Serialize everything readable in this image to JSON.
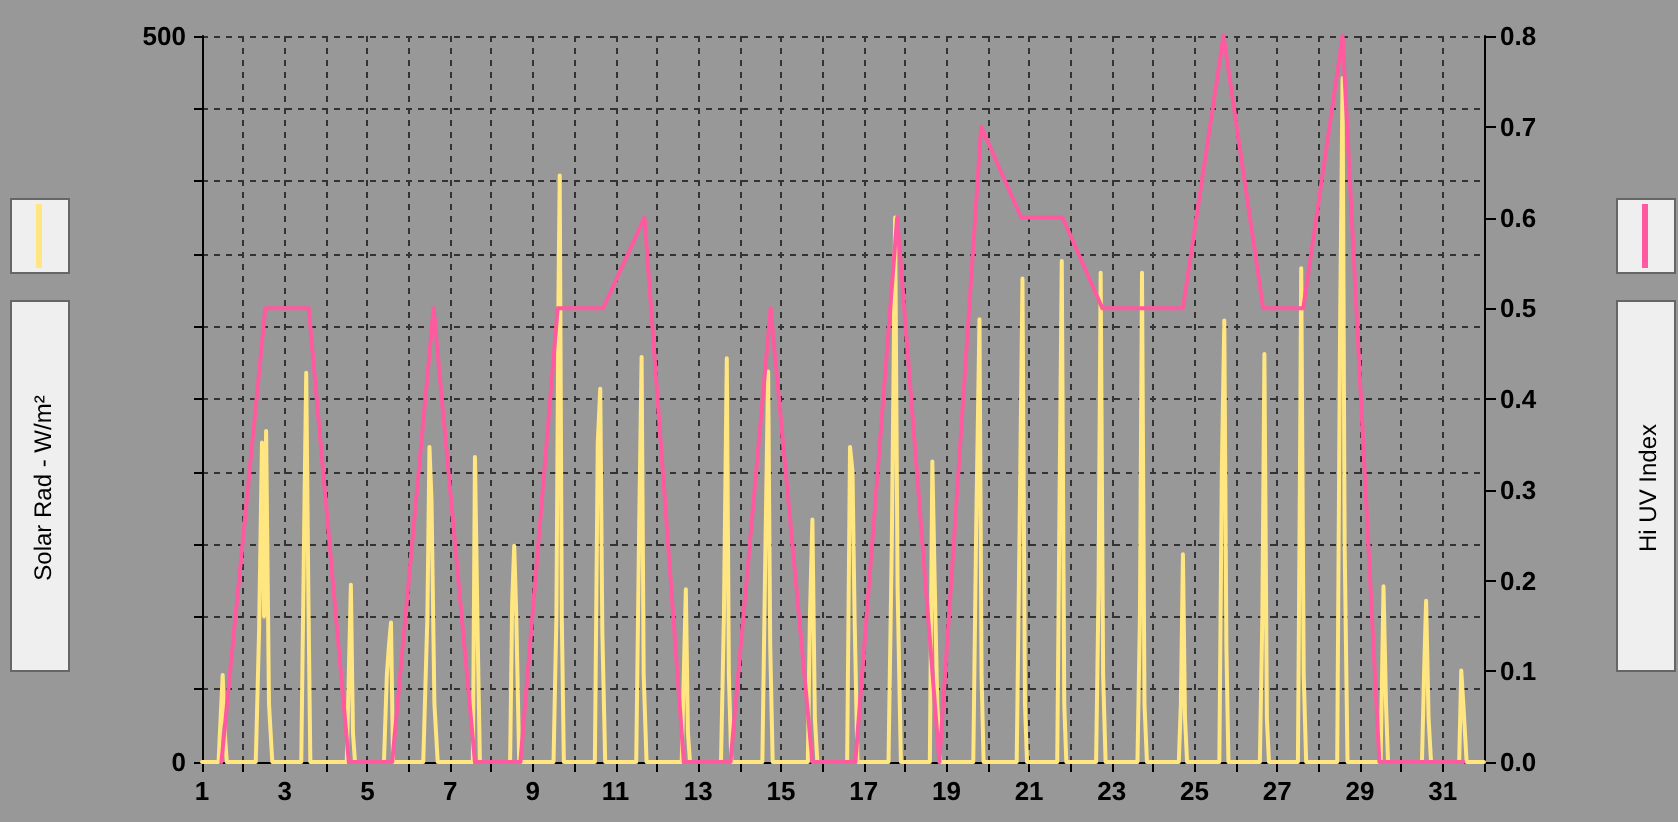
{
  "chart_data": {
    "type": "line",
    "ylabel": "Solar Rad - W/m²",
    "y2label": "Hi UV Index",
    "xlim": [
      1,
      32
    ],
    "xticks": [
      1,
      {
        "value": 2,
        "label": null
      },
      3,
      {
        "value": 4,
        "label": null
      },
      5,
      {
        "value": 6,
        "label": null
      },
      7,
      {
        "value": 8,
        "label": null
      },
      9,
      {
        "value": 10,
        "label": null
      },
      11,
      {
        "value": 12,
        "label": null
      },
      13,
      {
        "value": 14,
        "label": null
      },
      15,
      {
        "value": 16,
        "label": null
      },
      17,
      {
        "value": 18,
        "label": null
      },
      19,
      {
        "value": 20,
        "label": null
      },
      21,
      {
        "value": 22,
        "label": null
      },
      23,
      {
        "value": 24,
        "label": null
      },
      25,
      {
        "value": 26,
        "label": null
      },
      27,
      {
        "value": 28,
        "label": null
      },
      29,
      {
        "value": 30,
        "label": null
      },
      31,
      {
        "value": 32,
        "label": null
      }
    ],
    "ylim": [
      0,
      500
    ],
    "yticks": [
      0,
      {
        "value": 50,
        "label": null
      },
      {
        "value": 100,
        "label": null
      },
      {
        "value": 150,
        "label": null
      },
      {
        "value": 200,
        "label": null
      },
      {
        "value": 250,
        "label": null
      },
      {
        "value": 300,
        "label": null
      },
      {
        "value": 350,
        "label": null
      },
      {
        "value": 400,
        "label": null
      },
      {
        "value": 450,
        "label": null
      },
      500
    ],
    "y2lim": [
      0,
      0.8
    ],
    "y2ticks": [
      {
        "value": 0,
        "label": "0.0"
      },
      0.1,
      0.2,
      0.3,
      0.4,
      0.5,
      0.6,
      0.7,
      0.8
    ],
    "grid": true,
    "line_style": "solid",
    "marker": "none",
    "series": [
      {
        "color": "#ffe680",
        "x": [
          1,
          1.4,
          1.45,
          1.5,
          1.55,
          1.6,
          2.3,
          2.38,
          2.45,
          2.5,
          2.55,
          2.62,
          2.7,
          3.4,
          3.47,
          3.52,
          3.57,
          3.62,
          4.5,
          4.55,
          4.6,
          4.65,
          4.7,
          5.4,
          5.47,
          5.52,
          5.57,
          5.62,
          6.35,
          6.45,
          6.5,
          6.55,
          6.62,
          6.7,
          7.55,
          7.6,
          7.67,
          7.72,
          8.45,
          8.5,
          8.55,
          8.6,
          8.67,
          9.5,
          9.57,
          9.62,
          9.65,
          9.7,
          9.75,
          10.5,
          10.57,
          10.63,
          10.68,
          10.75,
          11.5,
          11.57,
          11.63,
          11.68,
          11.75,
          12.6,
          12.65,
          12.7,
          12.75,
          12.8,
          13.55,
          13.62,
          13.69,
          13.74,
          13.8,
          14.55,
          14.62,
          14.69,
          14.74,
          14.8,
          15.65,
          15.7,
          15.76,
          15.82,
          15.88,
          16.6,
          16.67,
          16.73,
          16.78,
          16.85,
          17.6,
          17.68,
          17.76,
          17.82,
          17.9,
          18.6,
          18.66,
          18.72,
          18.78,
          18.85,
          19.65,
          19.72,
          19.8,
          19.85,
          19.9,
          20.7,
          20.77,
          20.84,
          20.9,
          20.95,
          21.68,
          21.73,
          21.79,
          21.85,
          21.9,
          22.62,
          22.68,
          22.73,
          22.79,
          22.85,
          23.62,
          23.68,
          23.73,
          23.79,
          23.85,
          24.62,
          24.67,
          24.72,
          24.77,
          24.82,
          25.6,
          25.66,
          25.72,
          25.77,
          25.82,
          26.58,
          26.64,
          26.69,
          26.75,
          26.8,
          27.5,
          27.55,
          27.58,
          27.64,
          27.7,
          28.45,
          28.52,
          28.58,
          28.63,
          28.7,
          29.5,
          29.57,
          29.63,
          29.68,
          30.5,
          30.55,
          30.6,
          30.66,
          30.72,
          31.4,
          31.45,
          31.5,
          31.58,
          32
        ],
        "values": [
          0,
          0,
          30,
          60,
          20,
          0,
          0,
          90,
          220,
          100,
          228,
          40,
          0,
          0,
          160,
          268,
          120,
          0,
          0,
          60,
          122,
          20,
          0,
          0,
          60,
          80,
          96,
          0,
          0,
          100,
          217,
          180,
          40,
          0,
          0,
          210,
          80,
          0,
          0,
          110,
          149,
          100,
          0,
          0,
          100,
          322,
          404,
          100,
          0,
          0,
          220,
          257,
          90,
          0,
          0,
          160,
          279,
          60,
          0,
          0,
          60,
          119,
          20,
          0,
          0,
          100,
          278,
          60,
          0,
          0,
          140,
          269,
          80,
          0,
          0,
          100,
          167,
          30,
          0,
          0,
          217,
          200,
          100,
          0,
          0,
          150,
          375,
          120,
          0,
          0,
          207,
          120,
          40,
          0,
          0,
          160,
          305,
          60,
          0,
          0,
          160,
          333,
          40,
          0,
          0,
          160,
          345,
          40,
          0,
          0,
          120,
          337,
          60,
          0,
          0,
          100,
          337,
          40,
          0,
          0,
          40,
          143,
          30,
          0,
          0,
          200,
          304,
          80,
          0,
          0,
          100,
          281,
          30,
          0,
          0,
          200,
          340,
          60,
          0,
          0,
          300,
          471,
          150,
          0,
          0,
          121,
          40,
          0,
          0,
          60,
          111,
          30,
          0,
          0,
          63,
          40,
          0,
          0
        ]
      },
      {
        "color": "#ff5aa0",
        "axis": "y2",
        "x": [
          1.47,
          2.53,
          3.58,
          4.55,
          5.6,
          6.6,
          7.6,
          8.7,
          9.6,
          10.7,
          11.7,
          12.65,
          13.78,
          14.75,
          15.76,
          16.8,
          17.81,
          18.83,
          19.84,
          20.81,
          21.81,
          22.77,
          24.72,
          25.7,
          26.66,
          27.63,
          28.58,
          29.47,
          31.5
        ],
        "values": [
          0,
          0.5,
          0.5,
          0,
          0,
          0.5,
          0,
          0,
          0.5,
          0.5,
          0.6,
          0,
          0,
          0.5,
          0,
          0,
          0.6,
          0,
          0.7,
          0.6,
          0.6,
          0.5,
          0.5,
          0.8,
          0.5,
          0.5,
          0.8,
          0,
          0
        ]
      }
    ]
  }
}
